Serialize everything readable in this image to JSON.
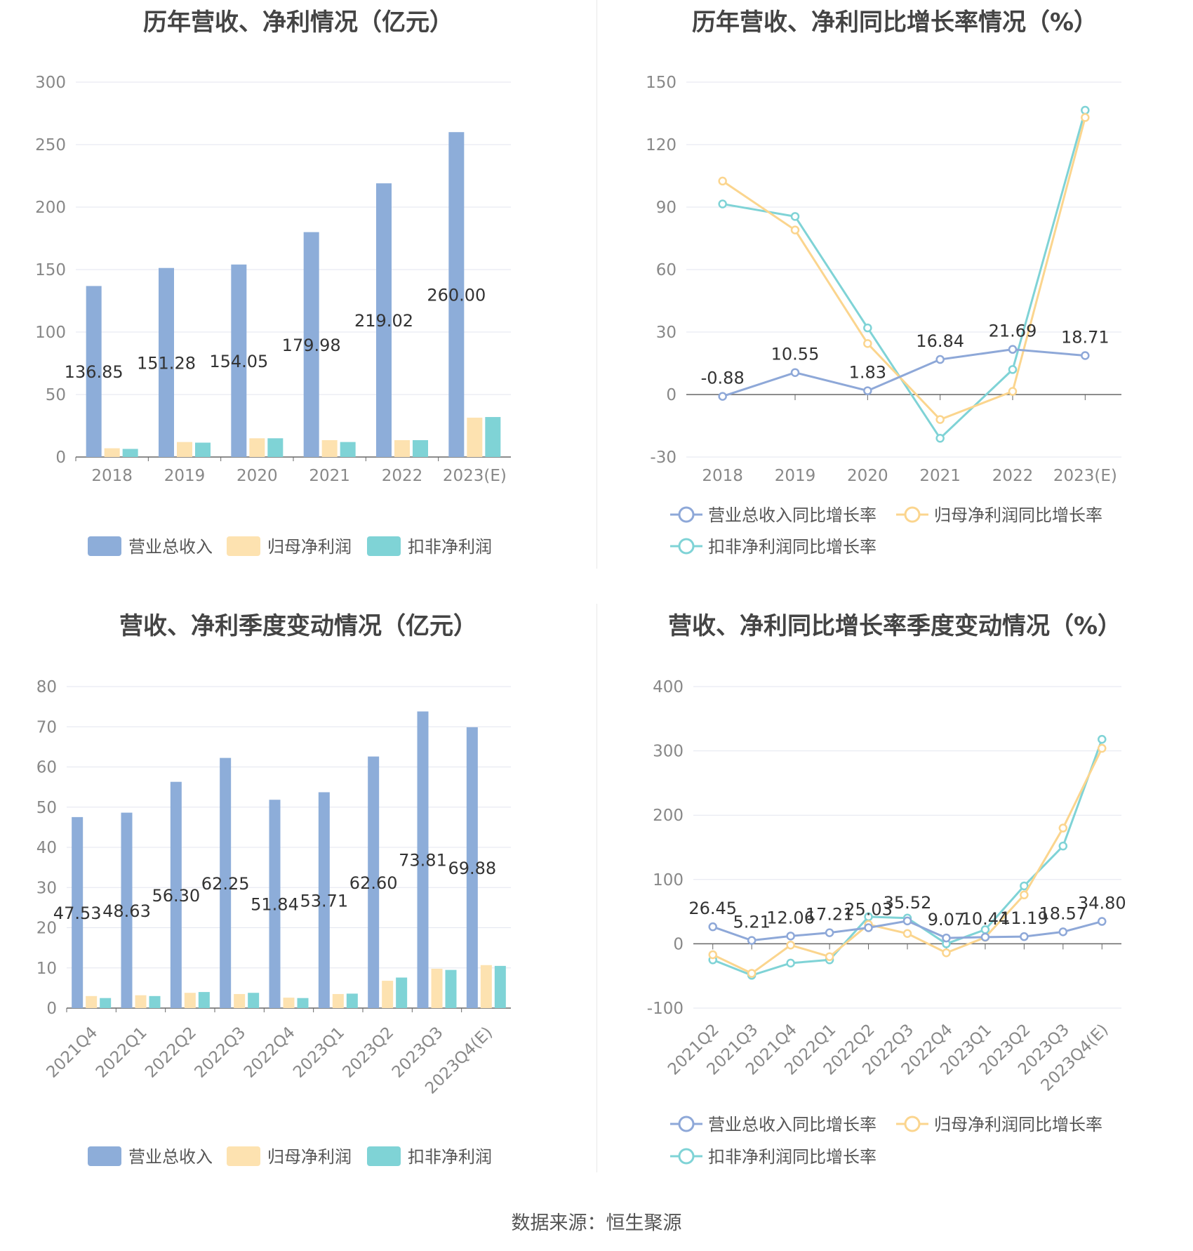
{
  "colors": {
    "revenue": "#8dadd9",
    "profit": "#fde2b0",
    "deducted": "#7fd3d6",
    "revenue_line": "#8ea8d8",
    "profit_line": "#fbd58e",
    "deducted_line": "#7fd3d6"
  },
  "legend": {
    "bars": [
      "营业总收入",
      "归母净利润",
      "扣非净利润"
    ],
    "lines": [
      "营业总收入同比增长率",
      "归母净利润同比增长率",
      "扣非净利润同比增长率"
    ]
  },
  "source": "数据来源：恒生聚源",
  "chart_data": [
    {
      "id": "annual-bar",
      "type": "bar",
      "title": "历年营收、净利情况（亿元）",
      "categories": [
        "2018",
        "2019",
        "2020",
        "2021",
        "2022",
        "2023(E)"
      ],
      "yticks": [
        0,
        50,
        100,
        150,
        200,
        250,
        300
      ],
      "ylim": [
        0,
        300
      ],
      "series": [
        {
          "name": "营业总收入",
          "values": [
            136.85,
            151.28,
            154.05,
            179.98,
            219.02,
            260.0
          ],
          "labels": [
            "136.85",
            "151.28",
            "154.05",
            "179.98",
            "219.02",
            "260.00"
          ]
        },
        {
          "name": "归母净利润",
          "values": [
            7.0,
            12.0,
            15.0,
            13.5,
            13.5,
            31.5
          ]
        },
        {
          "name": "扣非净利润",
          "values": [
            6.5,
            11.5,
            15.0,
            12.0,
            13.5,
            32.0
          ]
        }
      ]
    },
    {
      "id": "annual-line",
      "type": "line",
      "title": "历年营收、净利同比增长率情况（%）",
      "categories": [
        "2018",
        "2019",
        "2020",
        "2021",
        "2022",
        "2023(E)"
      ],
      "yticks": [
        -30,
        0,
        30,
        60,
        90,
        120,
        150
      ],
      "ylim": [
        -30,
        150
      ],
      "series": [
        {
          "name": "营业总收入同比增长率",
          "values": [
            -0.88,
            10.55,
            1.83,
            16.84,
            21.69,
            18.71
          ],
          "labels": [
            "-0.88",
            "10.55",
            "1.83",
            "16.84",
            "21.69",
            "18.71"
          ]
        },
        {
          "name": "归母净利润同比增长率",
          "values": [
            102.5,
            79.0,
            24.5,
            -12.0,
            1.5,
            133.0
          ]
        },
        {
          "name": "扣非净利润同比增长率",
          "values": [
            91.5,
            85.5,
            32.0,
            -21.0,
            12.0,
            136.5
          ]
        }
      ]
    },
    {
      "id": "quarter-bar",
      "type": "bar",
      "title": "营收、净利季度变动情况（亿元）",
      "categories": [
        "2021Q4",
        "2022Q1",
        "2022Q2",
        "2022Q3",
        "2022Q4",
        "2023Q1",
        "2023Q2",
        "2023Q3",
        "2023Q4(E)"
      ],
      "yticks": [
        0,
        10,
        20,
        30,
        40,
        50,
        60,
        70,
        80
      ],
      "ylim": [
        0,
        80
      ],
      "series": [
        {
          "name": "营业总收入",
          "values": [
            47.53,
            48.63,
            56.3,
            62.25,
            51.84,
            53.71,
            62.6,
            73.81,
            69.88
          ],
          "labels": [
            "47.53",
            "48.63",
            "56.30",
            "62.25",
            "51.84",
            "53.71",
            "62.60",
            "73.81",
            "69.88"
          ]
        },
        {
          "name": "归母净利润",
          "values": [
            3.0,
            3.2,
            3.8,
            3.5,
            2.6,
            3.5,
            6.8,
            9.8,
            10.7
          ]
        },
        {
          "name": "扣非净利润",
          "values": [
            2.5,
            3.0,
            4.0,
            3.8,
            2.5,
            3.6,
            7.6,
            9.5,
            10.5
          ]
        }
      ]
    },
    {
      "id": "quarter-line",
      "type": "line",
      "title": "营收、净利同比增长率季度变动情况（%）",
      "categories": [
        "2021Q2",
        "2021Q3",
        "2021Q4",
        "2022Q1",
        "2022Q2",
        "2022Q3",
        "2022Q4",
        "2023Q1",
        "2023Q2",
        "2023Q3",
        "2023Q4(E)"
      ],
      "yticks": [
        -100,
        0,
        100,
        200,
        300,
        400
      ],
      "ylim": [
        -100,
        400
      ],
      "series": [
        {
          "name": "营业总收入同比增长率",
          "values": [
            26.45,
            5.21,
            12.06,
            17.21,
            25.03,
            35.52,
            9.07,
            10.44,
            11.19,
            18.57,
            34.8
          ],
          "labels": [
            "26.45",
            "5.21",
            "12.06",
            "17.21",
            "25.03",
            "35.52",
            "9.07",
            "10.44",
            "11.19",
            "18.57",
            "34.80"
          ]
        },
        {
          "name": "归母净利润同比增长率",
          "values": [
            -17,
            -46,
            -2,
            -20,
            30,
            16,
            -14,
            10,
            76,
            180,
            304
          ]
        },
        {
          "name": "扣非净利润同比增长率",
          "values": [
            -25,
            -49,
            -30,
            -25,
            42,
            40,
            0,
            22,
            90,
            152,
            318
          ]
        }
      ]
    }
  ]
}
